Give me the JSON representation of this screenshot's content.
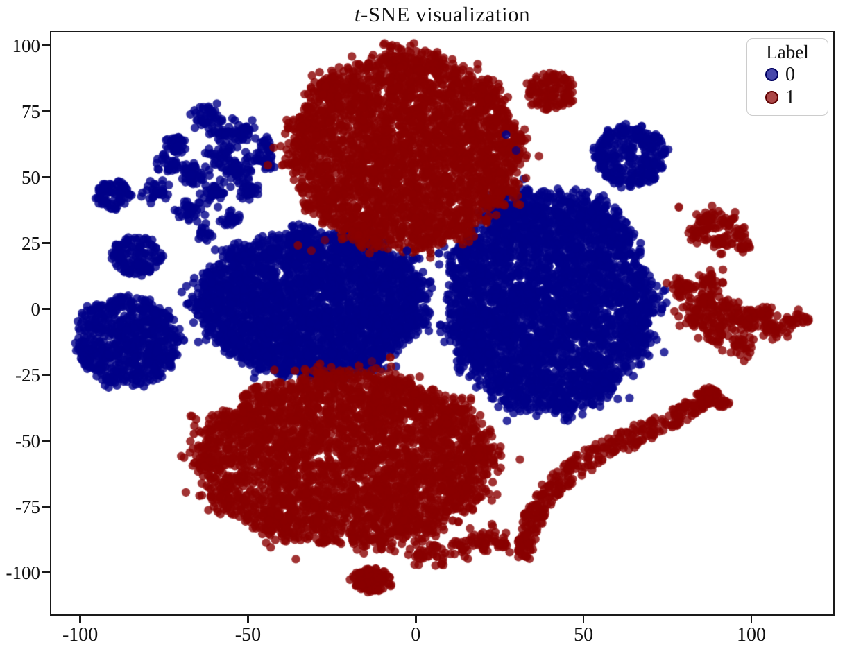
{
  "figure": {
    "title_italic": "t",
    "title_rest": "-SNE visualization"
  },
  "chart_data": {
    "type": "scatter",
    "title": "t-SNE visualization",
    "xlabel": "",
    "ylabel": "",
    "xlim": [
      -108.5,
      124.5
    ],
    "ylim": [
      -116,
      105
    ],
    "xticks": [
      -100,
      -50,
      0,
      50,
      100
    ],
    "yticks": [
      100,
      75,
      50,
      25,
      0,
      -25,
      -50,
      -75,
      -100
    ],
    "grid": false,
    "legend": {
      "title": "Label",
      "position": "upper right",
      "items": [
        {
          "label": "0",
          "color": "#00008a",
          "edge": "#000060"
        },
        {
          "label": "1",
          "color": "#8a0000",
          "edge": "#5e0000"
        }
      ]
    },
    "marker": {
      "radius_px": 6.2,
      "alpha": 0.8
    },
    "series": [
      {
        "name": "0",
        "color": "#00008a",
        "clusters": [
          {
            "type": "lumps",
            "lumps": [
              [
                -62,
                73,
                3.5,
                45
              ],
              [
                -52,
                67,
                3.2,
                40
              ],
              [
                -71,
                62,
                3.2,
                40
              ],
              [
                -57,
                57,
                3.5,
                45
              ],
              [
                -46,
                56,
                3.0,
                35
              ],
              [
                -66,
                51,
                3.5,
                45
              ],
              [
                -77,
                45,
                3.0,
                35
              ],
              [
                -60,
                44,
                3.5,
                45
              ],
              [
                -50,
                45,
                3.0,
                35
              ],
              [
                -68,
                37,
                3.0,
                35
              ],
              [
                -55,
                33,
                2.8,
                30
              ],
              [
                -63,
                29,
                2.2,
                18
              ],
              [
                -44,
                62,
                2.5,
                22
              ],
              [
                -58,
                66,
                2.8,
                28
              ],
              [
                -73,
                55,
                2.8,
                30
              ],
              [
                -52,
                52,
                3.0,
                32
              ]
            ]
          },
          {
            "type": "blob",
            "cx": -90,
            "cy": 43,
            "rx": 5.5,
            "ry": 5.5,
            "n": 90
          },
          {
            "type": "blob",
            "cx": -83,
            "cy": 20,
            "rx": 7.5,
            "ry": 7.5,
            "n": 150
          },
          {
            "type": "blob",
            "cx": -86,
            "cy": -12.5,
            "rx": 15,
            "ry": 16.5,
            "n": 650,
            "lumpy": true
          },
          {
            "type": "blob",
            "cx": -31,
            "cy": 2,
            "rx": 33,
            "ry": 27,
            "n": 2900,
            "lumpy": true
          },
          {
            "type": "blob",
            "cx": 40,
            "cy": 2.5,
            "rx": 30,
            "ry": 41,
            "n": 3400,
            "lumpy": true
          },
          {
            "type": "blob",
            "cx": 64,
            "cy": 58,
            "rx": 10,
            "ry": 11,
            "n": 260,
            "lumpy": true
          },
          {
            "type": "points",
            "pts": [
              [
                -69,
                -12,
                0.9
              ],
              [
                -50,
                -18,
                0.8
              ],
              [
                -19,
                -17,
                0.55
              ],
              [
                -16,
                -19,
                0.6
              ],
              [
                -2.5,
                22,
                0.9
              ],
              [
                7,
                21,
                0.9
              ],
              [
                27,
                66,
                0.85
              ],
              [
                30,
                60,
                0.7
              ]
            ]
          }
        ]
      },
      {
        "name": "1",
        "color": "#8a0000",
        "clusters": [
          {
            "type": "blob",
            "cx": -3,
            "cy": 60,
            "rx": 33.5,
            "ry": 36,
            "n": 3000,
            "lumpy": true
          },
          {
            "type": "blob",
            "cx": 40.5,
            "cy": 82.5,
            "rx": 7.5,
            "ry": 7,
            "n": 140
          },
          {
            "type": "blob",
            "cx": -21,
            "cy": -57,
            "rx": 43,
            "ry": 32,
            "n": 3200,
            "lumpy": true
          },
          {
            "type": "band",
            "n": 430,
            "path": [
              [
                32.5,
                -95,
                2
              ],
              [
                33,
                -87,
                2.5
              ],
              [
                35.5,
                -78,
                3
              ],
              [
                39.5,
                -70,
                3
              ],
              [
                45,
                -63,
                3.5
              ],
              [
                52,
                -56.5,
                3.5
              ],
              [
                60,
                -51.5,
                3.5
              ],
              [
                68,
                -47,
                3.5
              ],
              [
                76,
                -42,
                3
              ],
              [
                83,
                -37,
                2.5
              ],
              [
                87.5,
                -32.5,
                2.5
              ],
              [
                89.5,
                -31,
                2
              ]
            ]
          },
          {
            "type": "blob",
            "cx": 91.5,
            "cy": -35.5,
            "rx": 2.2,
            "ry": 2.2,
            "n": 18
          },
          {
            "type": "lumps",
            "lumps": [
              [
                80,
                7,
                3.5,
                40
              ],
              [
                88,
                10,
                3.0,
                30
              ],
              [
                84,
                -3,
                4.0,
                50
              ],
              [
                93,
                -1,
                4.0,
                50
              ],
              [
                90,
                -9,
                3.5,
                40
              ],
              [
                99,
                -5,
                3.5,
                40
              ],
              [
                107,
                -8,
                3.0,
                35
              ],
              [
                113.5,
                -4.5,
                2.8,
                28
              ],
              [
                97,
                -14,
                3.0,
                30
              ],
              [
                103,
                -2,
                3.0,
                30
              ],
              [
                87,
                4,
                3.0,
                30
              ]
            ]
          },
          {
            "type": "lumps",
            "lumps": [
              [
                88,
                35,
                2.8,
                25
              ],
              [
                93,
                33,
                2.5,
                20
              ],
              [
                85,
                28,
                2.8,
                25
              ],
              [
                91,
                25,
                2.5,
                20
              ],
              [
                96,
                28,
                2.5,
                20
              ],
              [
                98,
                23.5,
                2.0,
                14
              ],
              [
                86,
                33,
                2.0,
                14
              ]
            ]
          },
          {
            "type": "blob",
            "cx": -12.8,
            "cy": -103,
            "rx": 6,
            "ry": 4.5,
            "n": 120
          },
          {
            "type": "lumps",
            "lumps": [
              [
                4,
                -93,
                4.5,
                45
              ],
              [
                13,
                -90,
                3.0,
                25
              ],
              [
                20,
                -87.5,
                4.0,
                40
              ],
              [
                26,
                -89,
                2.5,
                18
              ]
            ]
          },
          {
            "type": "points",
            "pts": [
              [
                -13,
                -20,
                0.5
              ],
              [
                -7.5,
                -18.5,
                0.9
              ],
              [
                11,
                -80.5,
                0.5
              ],
              [
                -66,
                -47.5,
                0.85
              ],
              [
                -33,
                -27,
                0.6
              ],
              [
                -25,
                -29,
                0.6
              ],
              [
                -35,
                24,
                0.8
              ],
              [
                -31,
                22,
                0.7
              ],
              [
                -27,
                26,
                0.6
              ],
              [
                -17,
                28,
                0.6
              ],
              [
                78.5,
                38.5,
                0.9
              ]
            ]
          }
        ]
      }
    ]
  }
}
